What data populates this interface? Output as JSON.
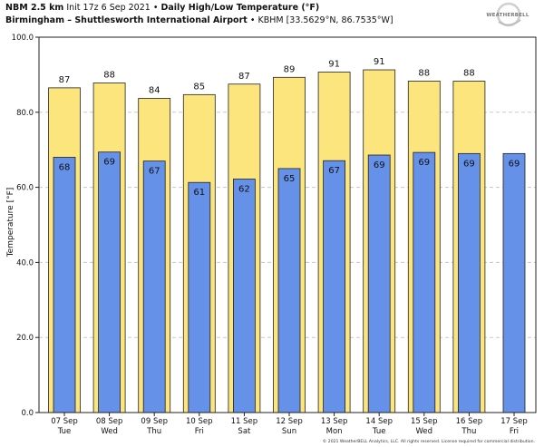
{
  "header": {
    "model": "NBM 2.5 km",
    "init": "Init 17z 6 Sep 2021",
    "product": "Daily High/Low Temperature (°F)",
    "location": "Birmingham – Shuttlesworth International Airport",
    "station": "KBHM [33.5629°N, 86.7535°W]"
  },
  "logo": {
    "text": "WEATHERBELL"
  },
  "copyright": "© 2021 WeatherBELL Analytics, LLC. All rights reserved. License required for commercial distribution.",
  "colors": {
    "high": "#fde57d",
    "low": "#6591e8",
    "outline": "#222222",
    "grid": "#c8c8c8"
  },
  "chart_data": {
    "type": "bar",
    "ylabel": "Temperature [°F]",
    "ylim": [
      0,
      100
    ],
    "yticks": [
      "0.0",
      "20.0",
      "40.0",
      "60.0",
      "80.0",
      "100.0"
    ],
    "grid": true,
    "categories": [
      {
        "date": "07 Sep",
        "day": "Tue"
      },
      {
        "date": "08 Sep",
        "day": "Wed"
      },
      {
        "date": "09 Sep",
        "day": "Thu"
      },
      {
        "date": "10 Sep",
        "day": "Fri"
      },
      {
        "date": "11 Sep",
        "day": "Sat"
      },
      {
        "date": "12 Sep",
        "day": "Sun"
      },
      {
        "date": "13 Sep",
        "day": "Mon"
      },
      {
        "date": "14 Sep",
        "day": "Tue"
      },
      {
        "date": "15 Sep",
        "day": "Wed"
      },
      {
        "date": "16 Sep",
        "day": "Thu"
      },
      {
        "date": "17 Sep",
        "day": "Fri"
      }
    ],
    "series": [
      {
        "values": [
          86.5,
          87.8,
          83.7,
          84.7,
          87.5,
          89.3,
          90.7,
          91.3,
          88.3,
          88.3,
          null
        ],
        "labels": [
          "87",
          "88",
          "84",
          "85",
          "87",
          "89",
          "91",
          "91",
          "88",
          "88",
          ""
        ]
      },
      {
        "values": [
          68.0,
          69.4,
          67.0,
          61.3,
          62.2,
          65.0,
          67.1,
          68.6,
          69.3,
          69.0,
          69.0
        ],
        "labels": [
          "68",
          "69",
          "67",
          "61",
          "62",
          "65",
          "67",
          "69",
          "69",
          "69",
          "69"
        ]
      }
    ]
  }
}
